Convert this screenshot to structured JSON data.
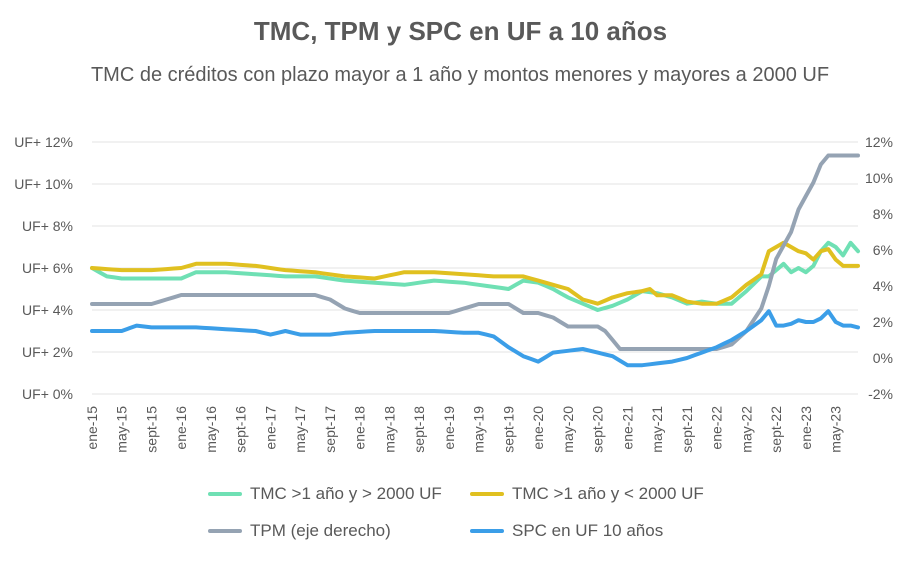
{
  "chart_data": {
    "type": "line",
    "title": "TMC, TPM y SPC en UF a 10 años",
    "subtitle": "TMC de créditos con plazo mayor a 1 año y montos menores y mayores a 2000 UF",
    "left_axis": {
      "ticks": [
        "UF+ 0%",
        "UF+ 2%",
        "UF+ 4%",
        "UF+ 6%",
        "UF+ 8%",
        "UF+ 10%",
        "UF+ 12%"
      ],
      "ylim": [
        0,
        12
      ]
    },
    "right_axis": {
      "ticks": [
        "-2%",
        "0%",
        "2%",
        "4%",
        "6%",
        "8%",
        "10%",
        "12%"
      ],
      "ylim": [
        -2,
        12
      ]
    },
    "x_tick_labels": [
      "ene-15",
      "may-15",
      "sept-15",
      "ene-16",
      "may-16",
      "sept-16",
      "ene-17",
      "may-17",
      "sept-17",
      "ene-18",
      "may-18",
      "sept-18",
      "ene-19",
      "may-19",
      "sept-19",
      "ene-20",
      "may-20",
      "sept-20",
      "ene-21",
      "may-21",
      "sept-21",
      "ene-22",
      "may-22",
      "sept-22",
      "ene-23",
      "may-23"
    ],
    "x_tick_every": 4,
    "n_points": 104,
    "grid": true,
    "legend_position": "bottom",
    "series": [
      {
        "name": "TMC >1 año y > 2000 UF",
        "axis": "left",
        "color": "#6fe0b4",
        "anchors": [
          [
            0,
            6.0
          ],
          [
            2,
            5.6
          ],
          [
            4,
            5.5
          ],
          [
            8,
            5.5
          ],
          [
            12,
            5.5
          ],
          [
            14,
            5.8
          ],
          [
            18,
            5.8
          ],
          [
            22,
            5.7
          ],
          [
            26,
            5.6
          ],
          [
            30,
            5.6
          ],
          [
            34,
            5.4
          ],
          [
            38,
            5.3
          ],
          [
            42,
            5.2
          ],
          [
            46,
            5.4
          ],
          [
            50,
            5.3
          ],
          [
            54,
            5.1
          ],
          [
            56,
            5.0
          ],
          [
            58,
            5.4
          ],
          [
            60,
            5.3
          ],
          [
            62,
            5.0
          ],
          [
            64,
            4.6
          ],
          [
            66,
            4.3
          ],
          [
            68,
            4.0
          ],
          [
            70,
            4.2
          ],
          [
            72,
            4.5
          ],
          [
            74,
            4.9
          ],
          [
            76,
            4.8
          ],
          [
            78,
            4.6
          ],
          [
            80,
            4.3
          ],
          [
            82,
            4.4
          ],
          [
            84,
            4.3
          ],
          [
            86,
            4.3
          ],
          [
            88,
            4.9
          ],
          [
            90,
            5.6
          ],
          [
            91,
            5.6
          ],
          [
            92,
            5.9
          ],
          [
            93,
            6.2
          ],
          [
            94,
            5.8
          ],
          [
            95,
            6.0
          ],
          [
            96,
            5.8
          ],
          [
            97,
            6.1
          ],
          [
            98,
            6.8
          ],
          [
            99,
            7.2
          ],
          [
            100,
            7.0
          ],
          [
            101,
            6.6
          ],
          [
            102,
            7.2
          ],
          [
            103,
            6.8
          ]
        ]
      },
      {
        "name": "TMC >1 año y < 2000 UF",
        "axis": "left",
        "color": "#e0c020",
        "anchors": [
          [
            0,
            6.0
          ],
          [
            4,
            5.9
          ],
          [
            8,
            5.9
          ],
          [
            12,
            6.0
          ],
          [
            14,
            6.2
          ],
          [
            18,
            6.2
          ],
          [
            22,
            6.1
          ],
          [
            26,
            5.9
          ],
          [
            30,
            5.8
          ],
          [
            34,
            5.6
          ],
          [
            38,
            5.5
          ],
          [
            42,
            5.8
          ],
          [
            46,
            5.8
          ],
          [
            50,
            5.7
          ],
          [
            54,
            5.6
          ],
          [
            58,
            5.6
          ],
          [
            62,
            5.2
          ],
          [
            64,
            5.0
          ],
          [
            66,
            4.5
          ],
          [
            68,
            4.3
          ],
          [
            70,
            4.6
          ],
          [
            72,
            4.8
          ],
          [
            74,
            4.9
          ],
          [
            75,
            5.0
          ],
          [
            76,
            4.7
          ],
          [
            78,
            4.7
          ],
          [
            80,
            4.4
          ],
          [
            82,
            4.3
          ],
          [
            84,
            4.3
          ],
          [
            86,
            4.6
          ],
          [
            88,
            5.2
          ],
          [
            90,
            5.7
          ],
          [
            91,
            6.8
          ],
          [
            92,
            7.0
          ],
          [
            93,
            7.2
          ],
          [
            94,
            7.0
          ],
          [
            95,
            6.8
          ],
          [
            96,
            6.7
          ],
          [
            97,
            6.4
          ],
          [
            98,
            6.8
          ],
          [
            99,
            6.9
          ],
          [
            100,
            6.4
          ],
          [
            101,
            6.1
          ],
          [
            102,
            6.1
          ],
          [
            103,
            6.1
          ]
        ]
      },
      {
        "name": "TPM (eje derecho)",
        "axis": "right",
        "color": "#95a3b3",
        "anchors": [
          [
            0,
            3.0
          ],
          [
            8,
            3.0
          ],
          [
            10,
            3.25
          ],
          [
            12,
            3.5
          ],
          [
            30,
            3.5
          ],
          [
            32,
            3.25
          ],
          [
            34,
            2.75
          ],
          [
            36,
            2.5
          ],
          [
            40,
            2.5
          ],
          [
            44,
            2.5
          ],
          [
            48,
            2.5
          ],
          [
            50,
            2.75
          ],
          [
            52,
            3.0
          ],
          [
            56,
            3.0
          ],
          [
            58,
            2.5
          ],
          [
            60,
            2.5
          ],
          [
            62,
            2.25
          ],
          [
            63,
            2.0
          ],
          [
            64,
            1.75
          ],
          [
            68,
            1.75
          ],
          [
            69,
            1.5
          ],
          [
            70,
            1.0
          ],
          [
            71,
            0.5
          ],
          [
            80,
            0.5
          ],
          [
            84,
            0.5
          ],
          [
            86,
            0.75
          ],
          [
            88,
            1.5
          ],
          [
            90,
            2.75
          ],
          [
            91,
            4.0
          ],
          [
            92,
            5.5
          ],
          [
            93,
            6.25
          ],
          [
            94,
            7.0
          ],
          [
            95,
            8.25
          ],
          [
            96,
            9.0
          ],
          [
            97,
            9.75
          ],
          [
            98,
            10.75
          ],
          [
            99,
            11.25
          ],
          [
            100,
            11.25
          ],
          [
            103,
            11.25
          ]
        ]
      },
      {
        "name": "SPC en UF 10 años",
        "axis": "right",
        "color": "#3b9ee8",
        "anchors": [
          [
            0,
            1.5
          ],
          [
            4,
            1.5
          ],
          [
            6,
            1.8
          ],
          [
            8,
            1.7
          ],
          [
            12,
            1.7
          ],
          [
            14,
            1.7
          ],
          [
            18,
            1.6
          ],
          [
            22,
            1.5
          ],
          [
            24,
            1.3
          ],
          [
            26,
            1.5
          ],
          [
            28,
            1.3
          ],
          [
            30,
            1.3
          ],
          [
            32,
            1.3
          ],
          [
            34,
            1.4
          ],
          [
            38,
            1.5
          ],
          [
            42,
            1.5
          ],
          [
            46,
            1.5
          ],
          [
            50,
            1.4
          ],
          [
            52,
            1.4
          ],
          [
            54,
            1.2
          ],
          [
            56,
            0.6
          ],
          [
            58,
            0.1
          ],
          [
            60,
            -0.2
          ],
          [
            62,
            0.3
          ],
          [
            64,
            0.4
          ],
          [
            66,
            0.5
          ],
          [
            68,
            0.3
          ],
          [
            70,
            0.1
          ],
          [
            72,
            -0.4
          ],
          [
            74,
            -0.4
          ],
          [
            76,
            -0.3
          ],
          [
            78,
            -0.2
          ],
          [
            80,
            0.0
          ],
          [
            82,
            0.3
          ],
          [
            84,
            0.6
          ],
          [
            86,
            1.0
          ],
          [
            88,
            1.5
          ],
          [
            90,
            2.1
          ],
          [
            91,
            2.6
          ],
          [
            92,
            1.8
          ],
          [
            93,
            1.8
          ],
          [
            94,
            1.9
          ],
          [
            95,
            2.1
          ],
          [
            96,
            2.0
          ],
          [
            97,
            2.0
          ],
          [
            98,
            2.2
          ],
          [
            99,
            2.6
          ],
          [
            100,
            2.0
          ],
          [
            101,
            1.8
          ],
          [
            102,
            1.8
          ],
          [
            103,
            1.7
          ]
        ]
      }
    ]
  }
}
